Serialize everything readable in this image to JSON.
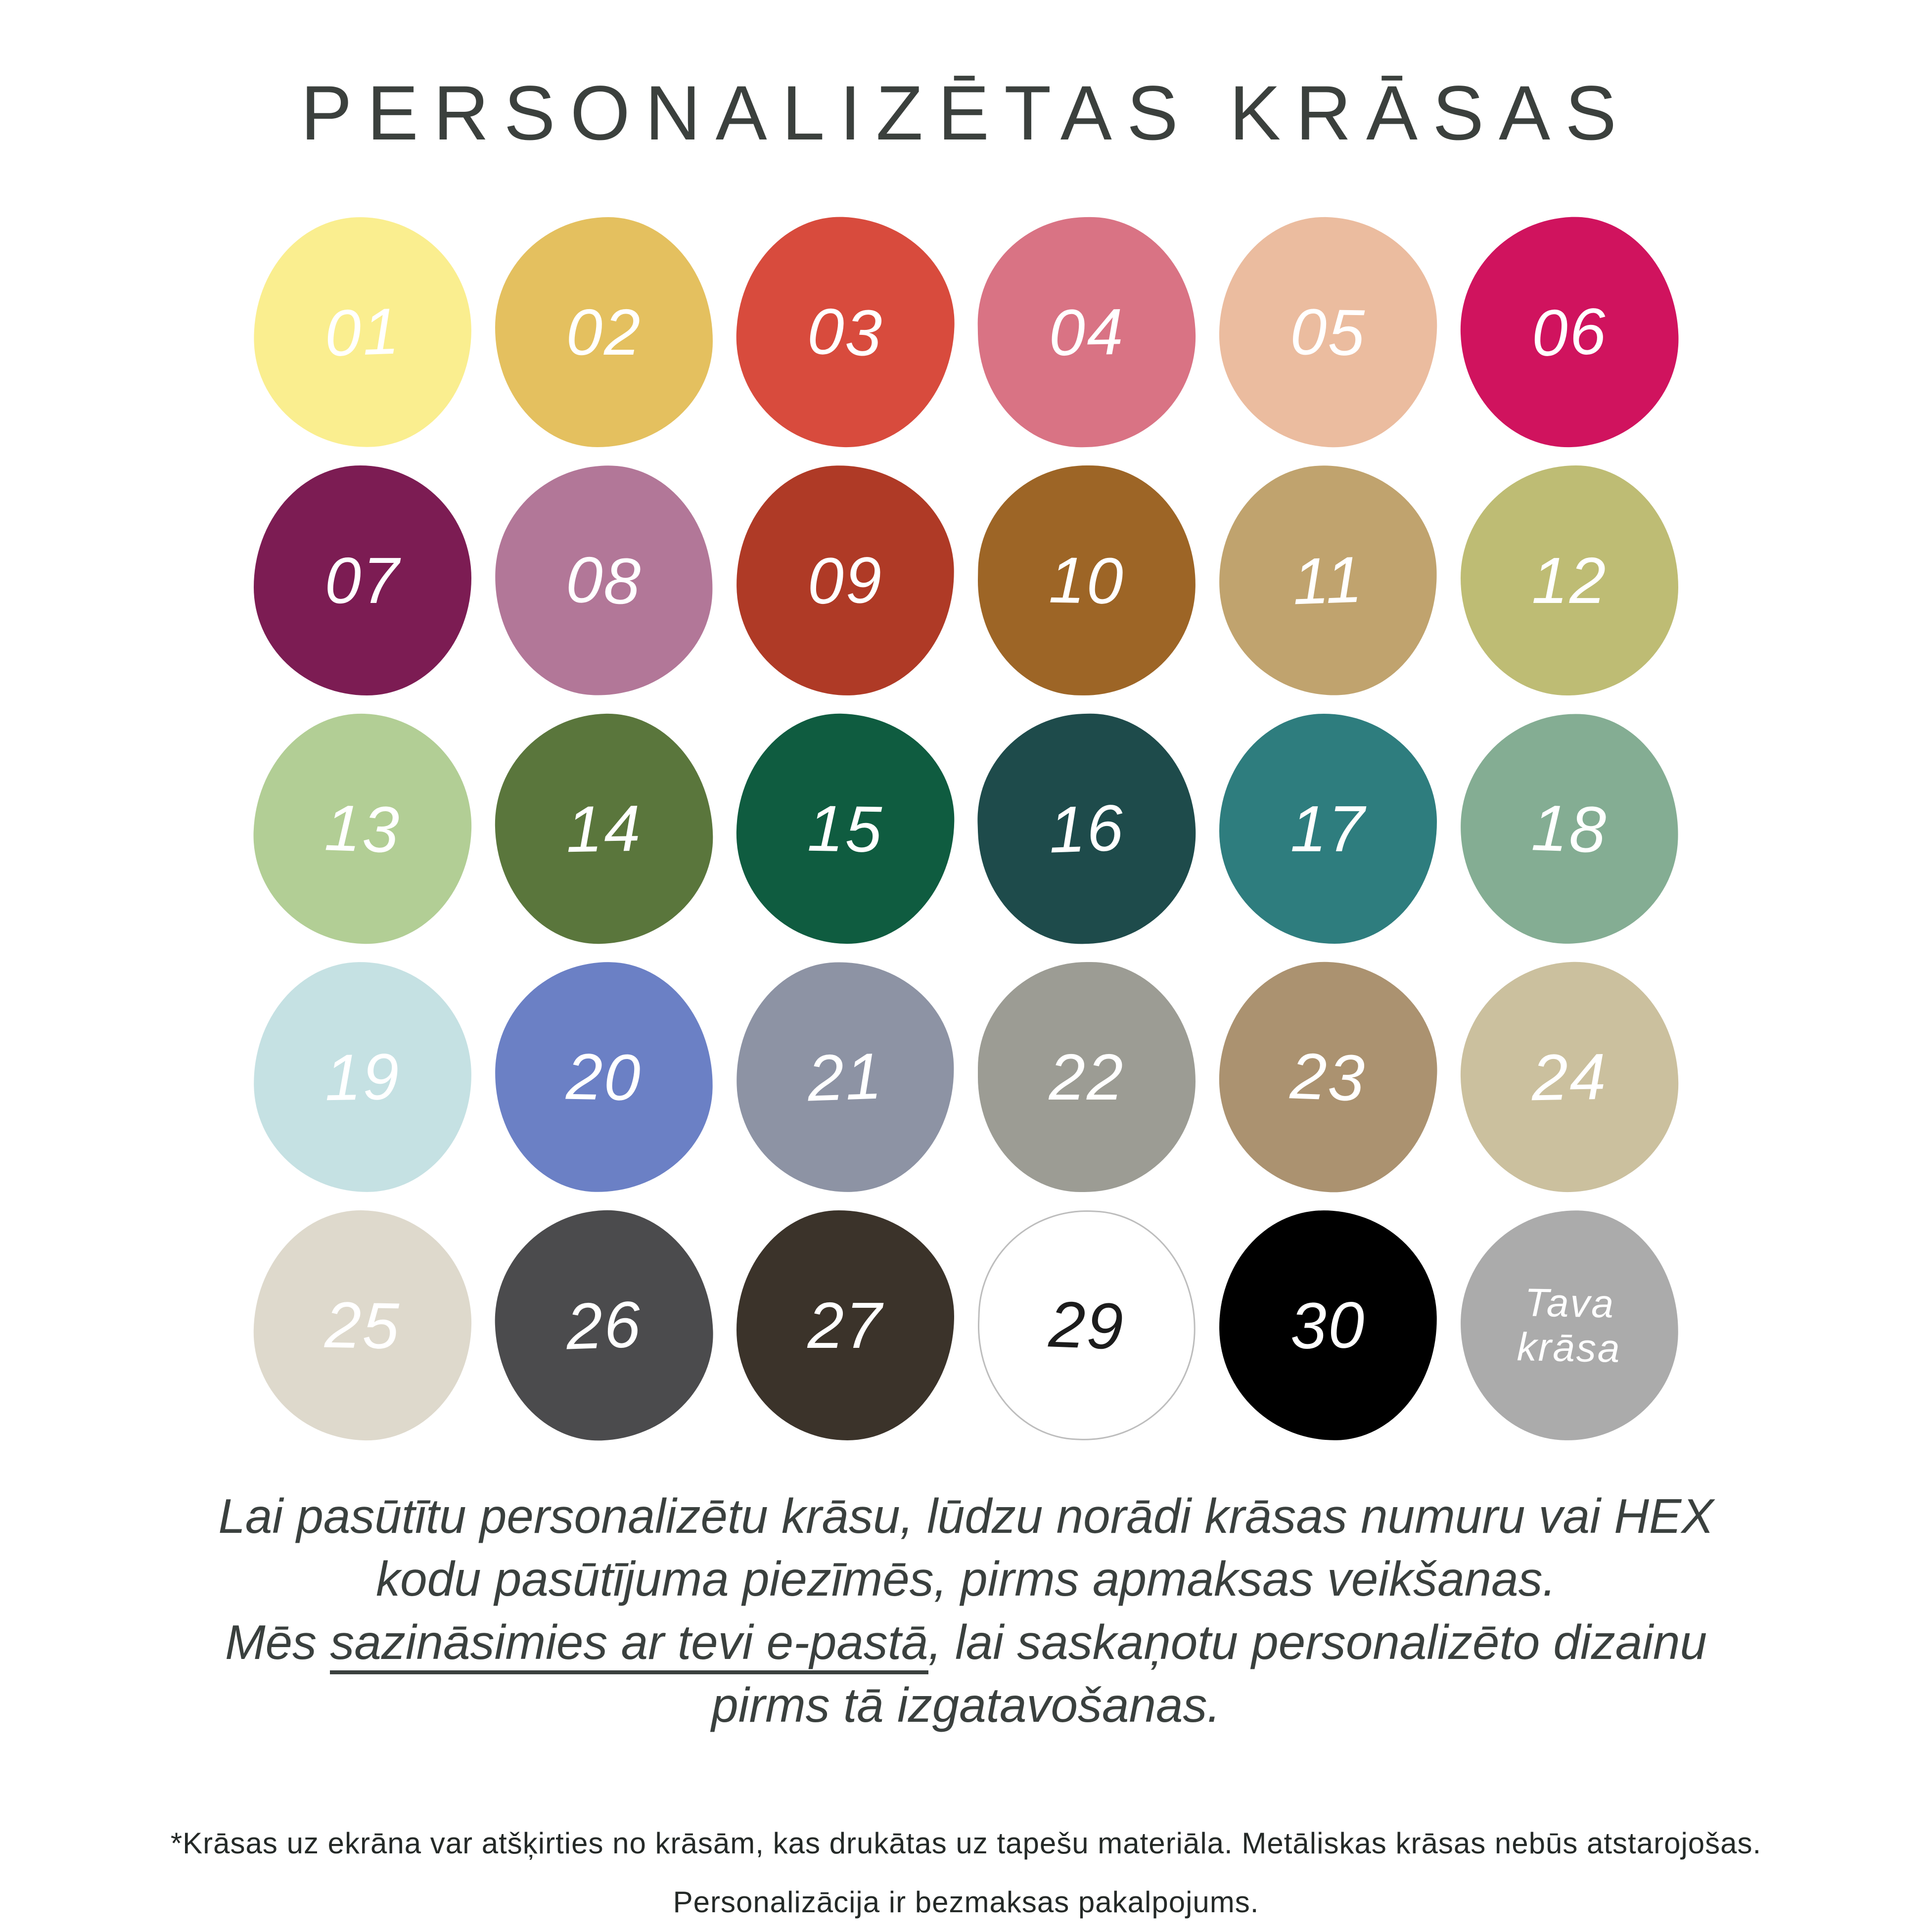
{
  "title": "PERSONALIZĒTAS KRĀSAS",
  "palette": {
    "swatches": [
      {
        "label": "01",
        "color": "#FAEE8F",
        "text_color": "#FFFFFF"
      },
      {
        "label": "02",
        "color": "#E4C05F",
        "text_color": "#FFFFFF"
      },
      {
        "label": "03",
        "color": "#D84B3D",
        "text_color": "#FFFFFF"
      },
      {
        "label": "04",
        "color": "#D97384",
        "text_color": "#FFFFFF"
      },
      {
        "label": "05",
        "color": "#EBBC9F",
        "text_color": "#FFFFFF"
      },
      {
        "label": "06",
        "color": "#D0135E",
        "text_color": "#FFFFFF"
      },
      {
        "label": "07",
        "color": "#7C1C53",
        "text_color": "#FFFFFF"
      },
      {
        "label": "08",
        "color": "#B27798",
        "text_color": "#FFFFFF"
      },
      {
        "label": "09",
        "color": "#AF3A26",
        "text_color": "#FFFFFF"
      },
      {
        "label": "10",
        "color": "#9D6526",
        "text_color": "#FFFFFF"
      },
      {
        "label": "11",
        "color": "#C0A36E",
        "text_color": "#FFFFFF"
      },
      {
        "label": "12",
        "color": "#BEBC74",
        "text_color": "#FFFFFF"
      },
      {
        "label": "13",
        "color": "#B2CE95",
        "text_color": "#FFFFFF"
      },
      {
        "label": "14",
        "color": "#5A763C",
        "text_color": "#FFFFFF"
      },
      {
        "label": "15",
        "color": "#0F5C40",
        "text_color": "#FFFFFF"
      },
      {
        "label": "16",
        "color": "#1E4B4B",
        "text_color": "#FFFFFF"
      },
      {
        "label": "17",
        "color": "#2E7D7E",
        "text_color": "#FFFFFF"
      },
      {
        "label": "18",
        "color": "#84AD93",
        "text_color": "#FFFFFF"
      },
      {
        "label": "19",
        "color": "#C5E1E3",
        "text_color": "#FFFFFF"
      },
      {
        "label": "20",
        "color": "#6B80C5",
        "text_color": "#FFFFFF"
      },
      {
        "label": "21",
        "color": "#8D93A4",
        "text_color": "#FFFFFF"
      },
      {
        "label": "22",
        "color": "#9C9C94",
        "text_color": "#FFFFFF"
      },
      {
        "label": "23",
        "color": "#AB9270",
        "text_color": "#FFFFFF"
      },
      {
        "label": "24",
        "color": "#CBC09E",
        "text_color": "#FFFFFF"
      },
      {
        "label": "25",
        "color": "#DED9CC",
        "text_color": "#FFFFFF"
      },
      {
        "label": "26",
        "color": "#4B4B4D",
        "text_color": "#FFFFFF"
      },
      {
        "label": "27",
        "color": "#3B332A",
        "text_color": "#FFFFFF"
      },
      {
        "label": "29",
        "color": "#FFFFFF",
        "text_color": "#1C1C1C",
        "outline": "#BDBDBD"
      },
      {
        "label": "30",
        "color": "#000000",
        "text_color": "#FFFFFF"
      },
      {
        "label": "Tava krāsa",
        "color": "#ABABAB",
        "text_color": "#FFFFFF",
        "custom": true
      }
    ]
  },
  "note": {
    "line1": "Lai pasūtītu personalizētu krāsu, lūdzu norādi krāsas numuru vai HEX",
    "line2": "kodu pasūtījuma piezīmēs, pirms apmaksas veikšanas.",
    "line3_pre": "Mēs ",
    "line3_underline": "sazināsimies ar tevi e-pastā",
    "line3_post": ", lai saskaņotu personalizēto dizainu",
    "line4": "pirms tā izgatavošanas."
  },
  "footnote": {
    "line1": "*Krāsas uz ekrāna var atšķirties no krāsām, kas drukātas uz tapešu materiāla. Metāliskas krāsas nebūs atstarojošas.",
    "line2": "Personalizācija ir bezmaksas pakalpojums."
  },
  "colors": {
    "background": "#FFFFFF",
    "title_text": "#3B403D",
    "note_text": "#3A403E",
    "footnote_text": "#242927"
  }
}
